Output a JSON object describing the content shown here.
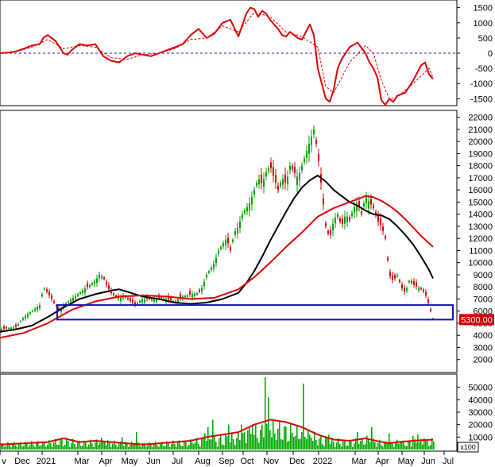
{
  "chart_data": [
    {
      "type": "line",
      "panel": "oscillator",
      "title": "",
      "ylim": [
        -1700,
        1700
      ],
      "yticks": [
        1500,
        1000,
        500,
        0,
        -500,
        -1000,
        -1500
      ],
      "zero_line": 0,
      "series": [
        {
          "color": "#e00000",
          "x": [
            0,
            10,
            20,
            30,
            40,
            50,
            55,
            60,
            70,
            80,
            85,
            90,
            100,
            110,
            120,
            130,
            140,
            150,
            160,
            170,
            180,
            190,
            200,
            210,
            220,
            230,
            240,
            250,
            260,
            270,
            280,
            290,
            300,
            310,
            315,
            320,
            325,
            330,
            335,
            340,
            345,
            350,
            355,
            360,
            365,
            370,
            375,
            380,
            385,
            390,
            395,
            400,
            405,
            410,
            415,
            420,
            425,
            430,
            440,
            450,
            460,
            465,
            470,
            475,
            480,
            485,
            490,
            495,
            500,
            510,
            520,
            530,
            535,
            540,
            545
          ],
          "values": [
            0,
            20,
            60,
            150,
            250,
            300,
            520,
            600,
            400,
            0,
            -50,
            100,
            300,
            250,
            300,
            -100,
            -250,
            -300,
            -100,
            0,
            -50,
            -100,
            0,
            100,
            200,
            300,
            600,
            800,
            500,
            650,
            1000,
            1100,
            550,
            1300,
            1500,
            1450,
            1200,
            1400,
            1300,
            1100,
            950,
            800,
            600,
            550,
            700,
            600,
            500,
            450,
            700,
            950,
            600,
            -500,
            -1000,
            -1500,
            -1600,
            -1200,
            -500,
            -200,
            200,
            350,
            0,
            -300,
            -500,
            -800,
            -1550,
            -1700,
            -1500,
            -1600,
            -1400,
            -1300,
            -900,
            -400,
            -300,
            -700,
            -850
          ]
        },
        {
          "color": "#e00000",
          "dashed": true,
          "x": [
            0,
            20,
            40,
            60,
            80,
            100,
            120,
            140,
            160,
            180,
            200,
            220,
            240,
            260,
            280,
            300,
            320,
            340,
            360,
            380,
            400,
            410,
            420,
            440,
            460,
            470,
            480,
            490,
            500,
            520,
            540,
            545
          ],
          "values": [
            0,
            50,
            200,
            450,
            150,
            250,
            200,
            -150,
            -200,
            -50,
            0,
            150,
            450,
            500,
            900,
            700,
            1350,
            1200,
            700,
            550,
            200,
            -1100,
            -1300,
            -300,
            250,
            0,
            -900,
            -1500,
            -1450,
            -1000,
            -500,
            -800
          ]
        }
      ]
    },
    {
      "type": "candlestick",
      "panel": "price",
      "title": "",
      "ylim": [
        1000,
        22500
      ],
      "yticks": [
        22000,
        21000,
        20000,
        19000,
        18000,
        17000,
        16000,
        15000,
        14000,
        13000,
        12000,
        11000,
        10000,
        9000,
        8000,
        7000,
        6000,
        5000,
        4000,
        3000,
        2000
      ],
      "x_tick_labels": [
        "v",
        "Dec",
        "2021",
        "Mar",
        "Apr",
        "May",
        "Jun",
        "Jul",
        "Aug",
        "Sep",
        "Oct",
        "Nov",
        "Dec",
        "2022",
        "Mar",
        "Apr",
        "May",
        "Jun",
        "Jul"
      ],
      "x_tick_positions": [
        5,
        28,
        58,
        103,
        133,
        163,
        193,
        223,
        255,
        285,
        311,
        341,
        374,
        406,
        452,
        481,
        511,
        539,
        564
      ],
      "last_price_label": "5300.00",
      "close_path": {
        "x": [
          0,
          10,
          20,
          30,
          40,
          50,
          55,
          60,
          65,
          70,
          75,
          80,
          90,
          100,
          110,
          120,
          125,
          130,
          135,
          140,
          145,
          150,
          155,
          160,
          165,
          170,
          175,
          180,
          190,
          200,
          210,
          220,
          230,
          240,
          250,
          255,
          260,
          265,
          270,
          275,
          280,
          285,
          290,
          295,
          300,
          305,
          310,
          315,
          320,
          325,
          330,
          335,
          340,
          345,
          350,
          355,
          360,
          365,
          370,
          375,
          380,
          385,
          390,
          395,
          400,
          405,
          410,
          415,
          420,
          425,
          430,
          435,
          440,
          445,
          450,
          455,
          460,
          465,
          470,
          475,
          480,
          485,
          490,
          495,
          500,
          505,
          510,
          515,
          520,
          525,
          530,
          535,
          540,
          545
        ],
        "values": [
          4500,
          4600,
          4700,
          5500,
          6000,
          6500,
          8000,
          7500,
          7000,
          6500,
          6000,
          6500,
          7000,
          7500,
          8000,
          8500,
          9000,
          8800,
          8000,
          7500,
          7200,
          7000,
          7300,
          7000,
          6800,
          6500,
          6800,
          7000,
          7000,
          7100,
          7000,
          6800,
          7200,
          7400,
          7500,
          8000,
          9000,
          9500,
          10000,
          11000,
          11500,
          12000,
          11000,
          12500,
          13000,
          14000,
          14500,
          15000,
          16000,
          17000,
          16500,
          17500,
          18000,
          17000,
          16000,
          17000,
          16500,
          18000,
          17500,
          17000,
          18000,
          19000,
          20000,
          21000,
          19000,
          16000,
          13000,
          12000,
          13500,
          14000,
          13000,
          14000,
          13500,
          14500,
          15000,
          14000,
          15500,
          15000,
          14500,
          13500,
          13000,
          12000,
          9000,
          8500,
          9000,
          8000,
          7500,
          8500,
          8200,
          8000,
          7800,
          7500,
          6500,
          5300
        ]
      },
      "series": [
        {
          "name": "",
          "color": "#000000",
          "x": [
            0,
            20,
            40,
            60,
            80,
            100,
            120,
            140,
            150,
            160,
            170,
            180,
            200,
            220,
            240,
            260,
            280,
            300,
            310,
            320,
            330,
            340,
            350,
            360,
            370,
            380,
            390,
            400,
            410,
            420,
            430,
            440,
            450,
            460,
            470,
            480,
            490,
            500,
            510,
            520,
            530,
            540,
            545
          ],
          "values": [
            4300,
            4500,
            4800,
            5500,
            6300,
            7000,
            7400,
            7700,
            7800,
            7600,
            7400,
            7200,
            7000,
            6700,
            6600,
            6700,
            7000,
            7500,
            8300,
            9300,
            10500,
            11800,
            13000,
            14200,
            15300,
            16200,
            16800,
            17200,
            16700,
            16000,
            15500,
            15000,
            14700,
            14300,
            14000,
            13900,
            13600,
            13000,
            12300,
            11500,
            10500,
            9400,
            8700
          ]
        },
        {
          "name": "",
          "color": "#e00000",
          "x": [
            0,
            30,
            60,
            90,
            120,
            150,
            180,
            210,
            240,
            270,
            300,
            320,
            340,
            360,
            380,
            400,
            420,
            440,
            460,
            470,
            480,
            490,
            500,
            510,
            520,
            530,
            540,
            545
          ],
          "values": [
            3800,
            4200,
            5000,
            6100,
            6800,
            7200,
            7300,
            7200,
            7000,
            7100,
            7800,
            8800,
            10000,
            11300,
            12500,
            13800,
            14500,
            15000,
            15500,
            15400,
            15100,
            14700,
            14200,
            13600,
            12900,
            12200,
            11600,
            11300
          ]
        }
      ],
      "support_box": {
        "from_x": 72,
        "to_x": 570,
        "low": 5300,
        "high": 6500
      }
    },
    {
      "type": "bar",
      "panel": "volume",
      "title": "",
      "ylim": [
        0,
        60000
      ],
      "yticks": [
        50000,
        40000,
        30000,
        20000,
        10000
      ],
      "unit_label": "x100",
      "bar_color": "#00aa00",
      "bar_baseline": 2000,
      "spikes": [
        [
          48,
          13000
        ],
        [
          70,
          12000
        ],
        [
          128,
          23000
        ],
        [
          153,
          10000
        ],
        [
          171,
          14000
        ],
        [
          246,
          15000
        ],
        [
          257,
          13000
        ],
        [
          261,
          18000
        ],
        [
          267,
          24000
        ],
        [
          287,
          20000
        ],
        [
          292,
          15000
        ],
        [
          303,
          20000
        ],
        [
          312,
          40000
        ],
        [
          318,
          44000
        ],
        [
          326,
          28000
        ],
        [
          333,
          58000
        ],
        [
          337,
          42000
        ],
        [
          342,
          48000
        ],
        [
          348,
          36000
        ],
        [
          352,
          27000
        ],
        [
          360,
          18000
        ],
        [
          368,
          32000
        ],
        [
          381,
          53000
        ],
        [
          390,
          22000
        ],
        [
          398,
          15000
        ],
        [
          413,
          12000
        ],
        [
          449,
          14000
        ],
        [
          462,
          24000
        ],
        [
          467,
          18000
        ],
        [
          489,
          13000
        ],
        [
          496,
          10000
        ],
        [
          500,
          22000
        ],
        [
          514,
          15000
        ],
        [
          519,
          11000
        ],
        [
          525,
          12000
        ],
        [
          533,
          9000
        ],
        [
          540,
          8000
        ]
      ],
      "moving_average": {
        "color": "#e00000",
        "x": [
          0,
          30,
          60,
          80,
          100,
          120,
          140,
          160,
          180,
          200,
          220,
          240,
          260,
          280,
          300,
          320,
          340,
          360,
          380,
          400,
          420,
          440,
          460,
          470,
          490,
          500,
          520,
          545
        ],
        "values": [
          4000,
          5000,
          6000,
          9000,
          6000,
          7000,
          6000,
          5000,
          4000,
          5000,
          6000,
          7000,
          10000,
          12000,
          14000,
          20000,
          24000,
          22000,
          18000,
          12000,
          8000,
          7000,
          9000,
          7500,
          5000,
          6000,
          7000,
          8000
        ]
      }
    }
  ]
}
